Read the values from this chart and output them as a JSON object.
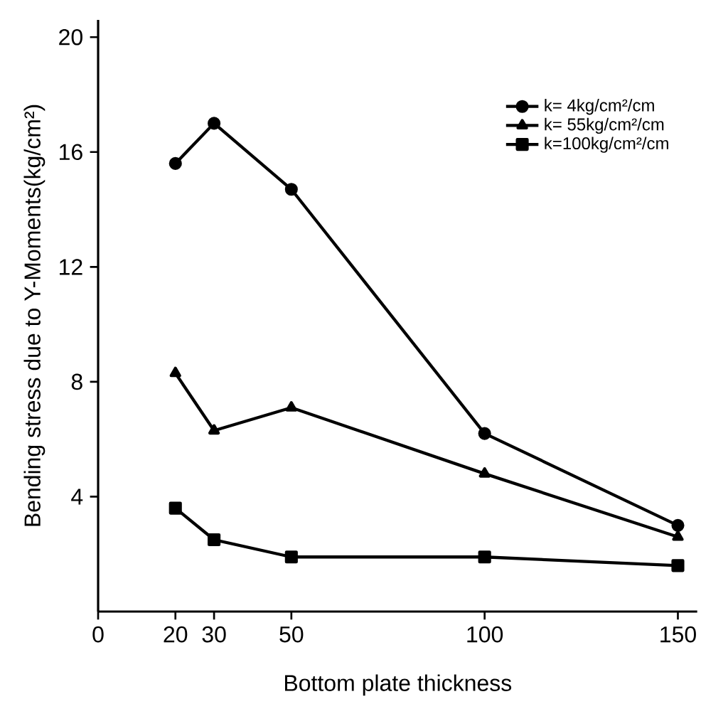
{
  "chart_data": {
    "type": "line",
    "xlabel": "Bottom plate thickness",
    "ylabel": "Bending stress due to Y-Moments(kg/cm²)",
    "x": [
      20,
      30,
      50,
      100,
      150
    ],
    "series": [
      {
        "name": "k=  4kg/cm²/cm",
        "color": "#000000",
        "marker": "circle",
        "values": [
          15.6,
          17.0,
          14.7,
          6.2,
          3.0
        ]
      },
      {
        "name": "k= 55kg/cm²/cm",
        "color": "#000000",
        "marker": "triangle",
        "values": [
          8.3,
          6.3,
          7.1,
          4.8,
          2.6
        ]
      },
      {
        "name": "k=100kg/cm²/cm",
        "color": "#000000",
        "marker": "square",
        "values": [
          3.6,
          2.5,
          1.9,
          1.9,
          1.6
        ]
      }
    ],
    "xlim": [
      0,
      155
    ],
    "ylim": [
      0,
      20.6
    ],
    "xticks": [
      0,
      20,
      30,
      50,
      100,
      150
    ],
    "yticks": [
      4,
      8,
      12,
      16,
      20
    ],
    "grid": false,
    "legend": "top right",
    "line_style": "solid"
  }
}
